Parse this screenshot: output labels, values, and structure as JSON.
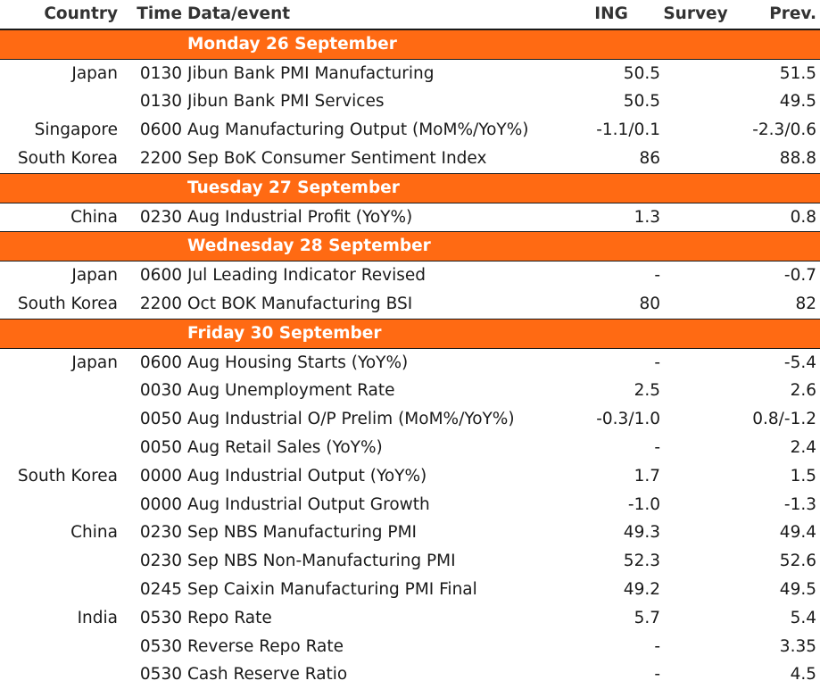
{
  "headers": {
    "country": "Country",
    "time": "Time",
    "event": "Data/event",
    "ing": "ING",
    "survey": "Survey",
    "prev": "Prev."
  },
  "colors": {
    "day_band": "#ff6a13",
    "day_text": "#ffffff"
  },
  "days": [
    {
      "label": "Monday 26 September",
      "rows": [
        {
          "country": "Japan",
          "time": "0130",
          "event": "Jibun Bank PMI Manufacturing",
          "ing": "50.5",
          "survey": "",
          "prev": "51.5"
        },
        {
          "country": "",
          "time": "0130",
          "event": "Jibun Bank PMI Services",
          "ing": "50.5",
          "survey": "",
          "prev": "49.5"
        },
        {
          "country": "Singapore",
          "time": "0600",
          "event": "Aug Manufacturing Output (MoM%/YoY%)",
          "ing": "-1.1/0.1",
          "survey": "",
          "prev": "-2.3/0.6"
        },
        {
          "country": "South Korea",
          "time": "2200",
          "event": "Sep BoK Consumer Sentiment Index",
          "ing": "86",
          "survey": "",
          "prev": "88.8"
        }
      ]
    },
    {
      "label": "Tuesday 27 September",
      "rows": [
        {
          "country": "China",
          "time": "0230",
          "event": "Aug Industrial Profit (YoY%)",
          "ing": "1.3",
          "survey": "",
          "prev": "0.8"
        }
      ]
    },
    {
      "label": "Wednesday 28 September",
      "rows": [
        {
          "country": "Japan",
          "time": "0600",
          "event": "Jul Leading Indicator Revised",
          "ing": "-",
          "survey": "",
          "prev": "-0.7"
        },
        {
          "country": "South Korea",
          "time": "2200",
          "event": "Oct BOK Manufacturing BSI",
          "ing": "80",
          "survey": "",
          "prev": "82"
        }
      ]
    },
    {
      "label": "Friday 30 September",
      "rows": [
        {
          "country": "Japan",
          "time": "0600",
          "event": "Aug Housing Starts (YoY%)",
          "ing": "-",
          "survey": "",
          "prev": "-5.4"
        },
        {
          "country": "",
          "time": "0030",
          "event": "Aug Unemployment Rate",
          "ing": "2.5",
          "survey": "",
          "prev": "2.6"
        },
        {
          "country": "",
          "time": "0050",
          "event": "Aug Industrial O/P Prelim (MoM%/YoY%)",
          "ing": "-0.3/1.0",
          "survey": "",
          "prev": "0.8/-1.2"
        },
        {
          "country": "",
          "time": "0050",
          "event": "Aug Retail Sales (YoY%)",
          "ing": "-",
          "survey": "",
          "prev": "2.4"
        },
        {
          "country": "South Korea",
          "time": "0000",
          "event": "Aug Industrial Output (YoY%)",
          "ing": "1.7",
          "survey": "",
          "prev": "1.5"
        },
        {
          "country": "",
          "time": "0000",
          "event": "Aug Industrial Output Growth",
          "ing": "-1.0",
          "survey": "",
          "prev": "-1.3"
        },
        {
          "country": "China",
          "time": "0230",
          "event": "Sep NBS Manufacturing PMI",
          "ing": "49.3",
          "survey": "",
          "prev": "49.4"
        },
        {
          "country": "",
          "time": "0230",
          "event": "Sep NBS Non-Manufacturing PMI",
          "ing": "52.3",
          "survey": "",
          "prev": "52.6"
        },
        {
          "country": "",
          "time": "0245",
          "event": "Sep Caixin Manufacturing PMI Final",
          "ing": "49.2",
          "survey": "",
          "prev": "49.5"
        },
        {
          "country": "India",
          "time": "0530",
          "event": "Repo Rate",
          "ing": "5.7",
          "survey": "",
          "prev": "5.4"
        },
        {
          "country": "",
          "time": "0530",
          "event": "Reverse Repo Rate",
          "ing": "-",
          "survey": "",
          "prev": "3.35"
        },
        {
          "country": "",
          "time": "0530",
          "event": "Cash Reserve Ratio",
          "ing": "-",
          "survey": "",
          "prev": "4.5"
        }
      ]
    }
  ]
}
